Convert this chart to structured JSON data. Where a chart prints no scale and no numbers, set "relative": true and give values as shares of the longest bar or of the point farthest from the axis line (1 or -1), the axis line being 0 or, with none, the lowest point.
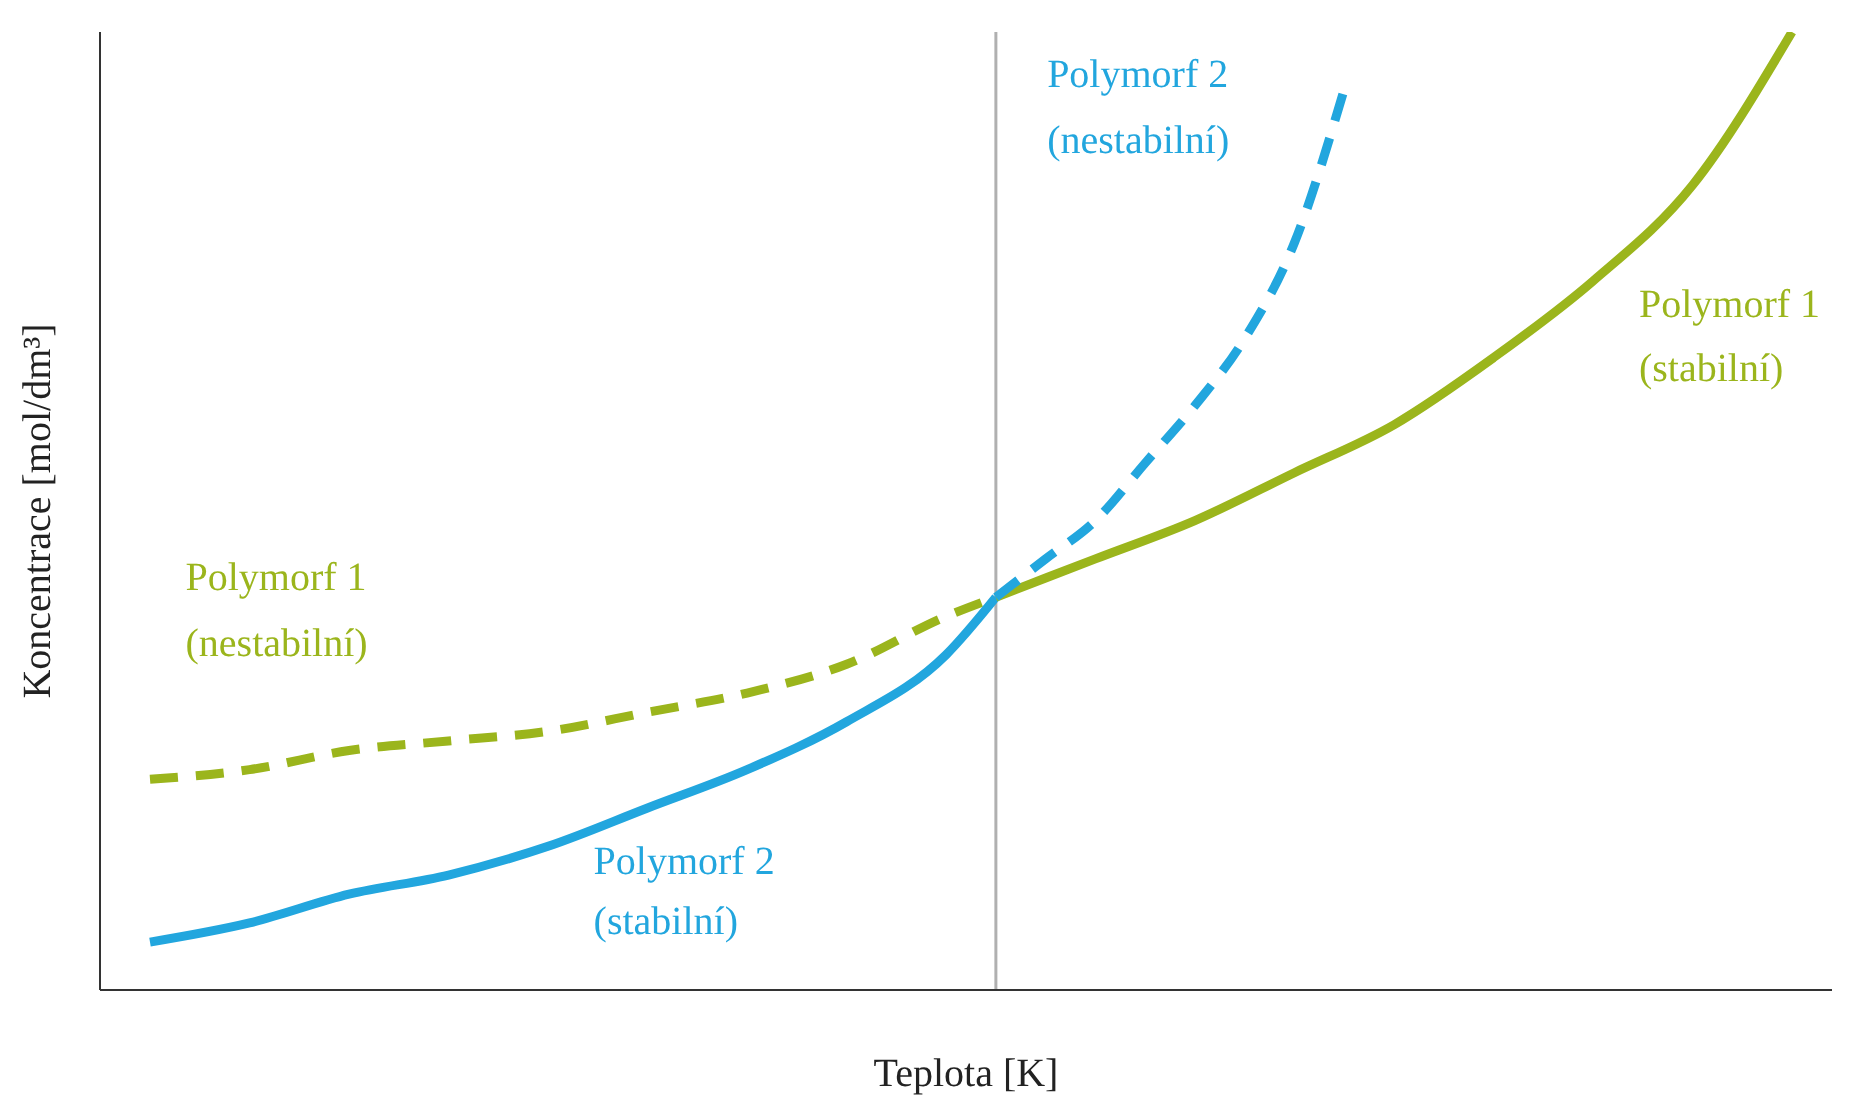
{
  "chart_data": {
    "type": "line",
    "relative": true,
    "xlabel": "Teplota [K]",
    "ylabel": "Koncentrace [mol/dm³]",
    "marker": "none",
    "categories": [
      null,
      null,
      null,
      null,
      null,
      null,
      null,
      null,
      null,
      null,
      null,
      null,
      null,
      null,
      null,
      null,
      null,
      null,
      null,
      null,
      null,
      null,
      null,
      null,
      null,
      null,
      null,
      null,
      null,
      null,
      null,
      null,
      null,
      null
    ],
    "series": [
      {
        "name": "Polymorf 1 (nestabilní)",
        "color": "#9bb51c",
        "line_style": "dashed",
        "values": [
          0.22,
          null,
          0.23,
          null,
          0.25,
          null,
          0.26,
          null,
          0.27,
          null,
          0.29,
          null,
          0.31,
          null,
          0.34,
          null,
          0.39,
          0.41,
          null,
          null,
          null,
          null,
          null,
          null,
          null,
          null,
          null,
          null,
          null,
          null,
          null,
          null,
          null,
          null
        ]
      },
      {
        "name": "Polymorf 2 (stabilní)",
        "color": "#22a6de",
        "line_style": "solid",
        "values": [
          0.05,
          null,
          0.07,
          null,
          0.1,
          null,
          0.12,
          null,
          0.15,
          null,
          0.19,
          null,
          0.23,
          null,
          0.28,
          null,
          0.35,
          0.41,
          null,
          null,
          null,
          null,
          null,
          null,
          null,
          null,
          null,
          null,
          null,
          null,
          null,
          null,
          null,
          null
        ]
      },
      {
        "name": "Polymorf 1 (stabilní)",
        "color": "#9bb51c",
        "line_style": "solid",
        "values": [
          null,
          null,
          null,
          null,
          null,
          null,
          null,
          null,
          null,
          null,
          null,
          null,
          null,
          null,
          null,
          null,
          null,
          0.41,
          null,
          0.45,
          null,
          0.49,
          null,
          0.54,
          null,
          0.59,
          null,
          0.66,
          null,
          0.74,
          null,
          0.84,
          null,
          1
        ]
      },
      {
        "name": "Polymorf 2 (nestabilní)",
        "color": "#22a6de",
        "line_style": "dashed",
        "values": [
          null,
          null,
          null,
          null,
          null,
          null,
          null,
          null,
          null,
          null,
          null,
          null,
          null,
          null,
          null,
          null,
          null,
          0.41,
          0.45,
          0.49,
          0.55,
          0.61,
          0.68,
          0.78,
          0.94,
          null,
          null,
          null,
          null,
          null,
          null,
          null,
          null,
          null
        ]
      }
    ]
  }
}
